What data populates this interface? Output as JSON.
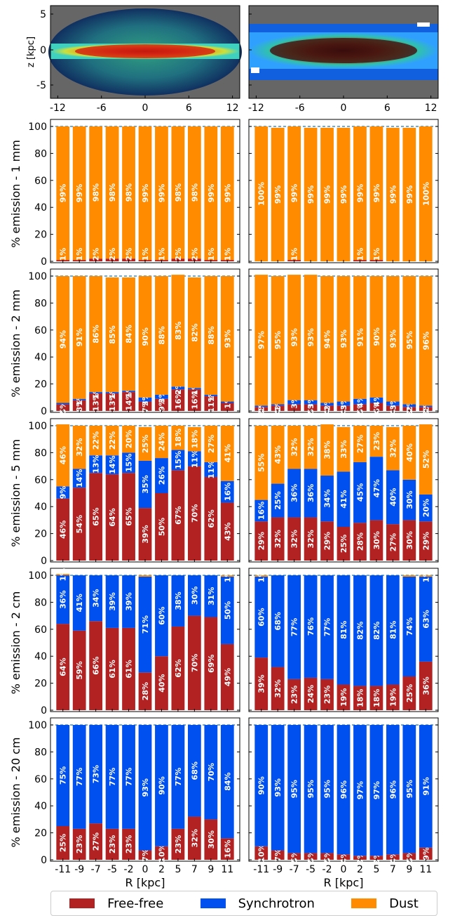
{
  "colors": {
    "free_free": "#b22222",
    "synchrotron": "#0050ef",
    "dust": "#ff8c00"
  },
  "maps": {
    "ylabel": "z [kpc]",
    "yticks": [
      "5",
      "0",
      "-5"
    ],
    "xticks": [
      "-12",
      "-6",
      "0",
      "6",
      "12"
    ]
  },
  "chart_data": [
    {
      "type": "bar",
      "stacked": true,
      "panel": "1 mm - left",
      "ylabel": "% emission - 1 mm",
      "ylim": [
        0,
        100
      ],
      "categories": [
        "-11",
        "-9",
        "-7",
        "-5",
        "-2",
        "0",
        "2",
        "5",
        "7",
        "9",
        "11"
      ],
      "series": [
        {
          "name": "Free-free",
          "values": [
            1,
            1,
            2,
            2,
            2,
            1,
            1,
            2,
            2,
            1,
            1
          ],
          "labels": [
            "",
            "",
            "",
            "",
            "",
            "",
            "",
            "",
            "",
            "",
            ""
          ]
        },
        {
          "name": "Synchrotron",
          "values": [
            0,
            0,
            0,
            0,
            0,
            0,
            0,
            0,
            0,
            0,
            0
          ],
          "labels": [
            "",
            "",
            "",
            "",
            "",
            "",
            "",
            "",
            "",
            "",
            ""
          ]
        },
        {
          "name": "Dust",
          "values": [
            99,
            99,
            98,
            98,
            98,
            99,
            99,
            98,
            98,
            99,
            99
          ],
          "labels": [
            "99%",
            "99%",
            "98%",
            "98%",
            "98%",
            "99%",
            "99%",
            "98%",
            "98%",
            "99%",
            "99%"
          ]
        }
      ],
      "extra_labels": [
        "1%",
        "1%",
        "2%",
        "2%",
        "2%",
        "1%",
        "1%",
        "2%",
        "2%",
        "1%",
        "1%"
      ]
    },
    {
      "type": "bar",
      "stacked": true,
      "panel": "1 mm - right",
      "ylim": [
        0,
        100
      ],
      "categories": [
        "-11",
        "-9",
        "-7",
        "-5",
        "-2",
        "0",
        "2",
        "5",
        "7",
        "9",
        "11"
      ],
      "series": [
        {
          "name": "Free-free",
          "values": [
            0,
            0,
            1,
            0,
            0,
            0,
            1,
            1,
            0,
            0,
            0
          ],
          "labels": [
            "",
            "",
            "",
            "",
            "",
            "",
            "",
            "",
            "",
            "",
            ""
          ]
        },
        {
          "name": "Synchrotron",
          "values": [
            0,
            0,
            0,
            0,
            0,
            0,
            0,
            0,
            0,
            0,
            0
          ],
          "labels": [
            "",
            "",
            "",
            "",
            "",
            "",
            "",
            "",
            "",
            "",
            ""
          ]
        },
        {
          "name": "Dust",
          "values": [
            100,
            99,
            99,
            99,
            99,
            99,
            99,
            99,
            99,
            99,
            100
          ],
          "labels": [
            "100%",
            "99%",
            "99%",
            "99%",
            "99%",
            "99%",
            "99%",
            "99%",
            "99%",
            "99%",
            "100%"
          ]
        }
      ],
      "extra_labels": [
        "",
        "",
        "1%",
        "",
        "",
        "",
        "1%",
        "1%",
        "",
        "",
        ""
      ]
    },
    {
      "type": "bar",
      "stacked": true,
      "panel": "2 mm - left",
      "ylabel": "% emission - 2 mm",
      "ylim": [
        0,
        100
      ],
      "categories": [
        "-11",
        "-9",
        "-7",
        "-5",
        "-2",
        "0",
        "2",
        "5",
        "7",
        "9",
        "11"
      ],
      "series": [
        {
          "name": "Free-free",
          "values": [
            5,
            8,
            13,
            13,
            14,
            7,
            9,
            16,
            16,
            11,
            6
          ],
          "labels": [
            "5%",
            "8%",
            "13%",
            "13%",
            "14%",
            "7%",
            "9%",
            "16%",
            "16%",
            "11%",
            ""
          ]
        },
        {
          "name": "Synchrotron",
          "values": [
            1,
            1,
            1,
            1,
            1,
            3,
            3,
            2,
            1,
            1,
            1
          ],
          "labels": [
            "",
            "1%",
            "1%",
            "1%",
            "1%",
            "3%",
            "3%",
            "2%",
            "1%",
            "1%",
            "1%"
          ]
        },
        {
          "name": "Dust",
          "values": [
            94,
            91,
            86,
            85,
            84,
            90,
            88,
            83,
            82,
            88,
            93
          ],
          "labels": [
            "94%",
            "91%",
            "86%",
            "85%",
            "84%",
            "90%",
            "88%",
            "83%",
            "82%",
            "88%",
            "93%"
          ]
        }
      ]
    },
    {
      "type": "bar",
      "stacked": true,
      "panel": "2 mm - right",
      "ylim": [
        0,
        100
      ],
      "categories": [
        "-11",
        "-9",
        "-7",
        "-5",
        "-2",
        "0",
        "2",
        "5",
        "7",
        "9",
        "11"
      ],
      "series": [
        {
          "name": "Free-free",
          "values": [
            3,
            4,
            5,
            5,
            4,
            4,
            5,
            6,
            4,
            3,
            3
          ],
          "labels": [
            "3%",
            "4%",
            "",
            "5%",
            "4%",
            "4%",
            "5%",
            "6%",
            "4%",
            "3%",
            "3%"
          ]
        },
        {
          "name": "Synchrotron",
          "values": [
            1,
            1,
            3,
            3,
            2,
            3,
            4,
            4,
            3,
            2,
            1
          ],
          "labels": [
            "1%",
            "1%",
            "3%",
            "3%",
            "2%",
            "3%",
            "4%",
            "4%",
            "3%",
            "2%",
            "1%"
          ]
        },
        {
          "name": "Dust",
          "values": [
            97,
            95,
            93,
            93,
            94,
            93,
            91,
            90,
            93,
            95,
            96
          ],
          "labels": [
            "97%",
            "95%",
            "93%",
            "93%",
            "94%",
            "93%",
            "91%",
            "90%",
            "93%",
            "95%",
            "96%"
          ]
        }
      ]
    },
    {
      "type": "bar",
      "stacked": true,
      "panel": "5 mm - left",
      "ylabel": "% emission - 5 mm",
      "ylim": [
        0,
        100
      ],
      "categories": [
        "-11",
        "-9",
        "-7",
        "-5",
        "-2",
        "0",
        "2",
        "5",
        "7",
        "9",
        "11"
      ],
      "series": [
        {
          "name": "Free-free",
          "values": [
            46,
            54,
            65,
            64,
            65,
            39,
            50,
            67,
            70,
            62,
            43
          ],
          "labels": [
            "46%",
            "54%",
            "65%",
            "64%",
            "65%",
            "39%",
            "50%",
            "67%",
            "70%",
            "62%",
            "43%"
          ]
        },
        {
          "name": "Synchrotron",
          "values": [
            9,
            14,
            13,
            14,
            15,
            35,
            26,
            15,
            11,
            11,
            16
          ],
          "labels": [
            "9%",
            "14%",
            "13%",
            "14%",
            "15%",
            "35%",
            "26%",
            "15%",
            "11%",
            "11%",
            "16%"
          ]
        },
        {
          "name": "Dust",
          "values": [
            46,
            32,
            22,
            22,
            20,
            25,
            24,
            18,
            18,
            27,
            41
          ],
          "labels": [
            "46%",
            "32%",
            "22%",
            "22%",
            "20%",
            "25%",
            "24%",
            "18%",
            "18%",
            "27%",
            "41%"
          ]
        }
      ]
    },
    {
      "type": "bar",
      "stacked": true,
      "panel": "5 mm - right",
      "ylim": [
        0,
        100
      ],
      "categories": [
        "-11",
        "-9",
        "-7",
        "-5",
        "-2",
        "0",
        "2",
        "5",
        "7",
        "9",
        "11"
      ],
      "series": [
        {
          "name": "Free-free",
          "values": [
            29,
            32,
            32,
            32,
            29,
            25,
            28,
            30,
            27,
            30,
            29
          ],
          "labels": [
            "29%",
            "32%",
            "32%",
            "32%",
            "29%",
            "25%",
            "28%",
            "30%",
            "27%",
            "30%",
            "29%"
          ]
        },
        {
          "name": "Synchrotron",
          "values": [
            16,
            25,
            36,
            36,
            34,
            41,
            45,
            47,
            40,
            30,
            20
          ],
          "labels": [
            "16%",
            "25%",
            "36%",
            "36%",
            "34%",
            "41%",
            "45%",
            "47%",
            "40%",
            "30%",
            "20%"
          ]
        },
        {
          "name": "Dust",
          "values": [
            55,
            43,
            32,
            32,
            38,
            33,
            27,
            23,
            32,
            40,
            52
          ],
          "labels": [
            "55%",
            "43%",
            "32%",
            "32%",
            "38%",
            "33%",
            "27%",
            "23%",
            "32%",
            "40%",
            "52%"
          ]
        }
      ]
    },
    {
      "type": "bar",
      "stacked": true,
      "panel": "2 cm - left",
      "ylabel": "% emission - 2 cm",
      "ylim": [
        0,
        100
      ],
      "categories": [
        "-11",
        "-9",
        "-7",
        "-5",
        "-2",
        "0",
        "2",
        "5",
        "7",
        "9",
        "11"
      ],
      "series": [
        {
          "name": "Free-free",
          "values": [
            64,
            59,
            66,
            61,
            61,
            28,
            40,
            62,
            70,
            69,
            49
          ],
          "labels": [
            "64%",
            "59%",
            "66%",
            "61%",
            "61%",
            "28%",
            "40%",
            "62%",
            "70%",
            "69%",
            "49%"
          ]
        },
        {
          "name": "Synchrotron",
          "values": [
            36,
            41,
            34,
            39,
            39,
            71,
            60,
            38,
            30,
            31,
            50
          ],
          "labels": [
            "36%",
            "41%",
            "34%",
            "39%",
            "39%",
            "71%",
            "60%",
            "38%",
            "30%",
            "31%",
            "50%"
          ]
        },
        {
          "name": "Dust",
          "values": [
            1,
            0,
            0,
            0,
            0,
            1,
            0,
            0,
            0,
            0,
            1
          ],
          "labels": [
            "1%",
            "",
            "",
            "",
            "",
            "",
            "",
            "",
            "",
            "",
            "1%"
          ]
        }
      ]
    },
    {
      "type": "bar",
      "stacked": true,
      "panel": "2 cm - right",
      "ylim": [
        0,
        100
      ],
      "categories": [
        "-11",
        "-9",
        "-7",
        "-5",
        "-2",
        "0",
        "2",
        "5",
        "7",
        "9",
        "11"
      ],
      "series": [
        {
          "name": "Free-free",
          "values": [
            39,
            32,
            23,
            24,
            23,
            19,
            18,
            18,
            19,
            25,
            36
          ],
          "labels": [
            "39%",
            "32%",
            "23%",
            "24%",
            "23%",
            "19%",
            "18%",
            "18%",
            "19%",
            "25%",
            "36%"
          ]
        },
        {
          "name": "Synchrotron",
          "values": [
            60,
            68,
            77,
            76,
            77,
            81,
            82,
            82,
            81,
            74,
            63
          ],
          "labels": [
            "60%",
            "68%",
            "77%",
            "76%",
            "77%",
            "81%",
            "82%",
            "82%",
            "81%",
            "74%",
            "63%"
          ]
        },
        {
          "name": "Dust",
          "values": [
            1,
            0,
            0,
            0,
            0,
            0,
            0,
            0,
            0,
            1,
            1
          ],
          "labels": [
            "1%",
            "",
            "",
            "",
            "",
            "",
            "",
            "",
            "",
            "",
            "1%"
          ]
        }
      ]
    },
    {
      "type": "bar",
      "stacked": true,
      "panel": "20 cm - left",
      "ylabel": "% emission - 20 cm",
      "ylim": [
        0,
        100
      ],
      "xlabel": "R [kpc]",
      "categories": [
        "-11",
        "-9",
        "-7",
        "-5",
        "-2",
        "0",
        "2",
        "5",
        "7",
        "9",
        "11"
      ],
      "series": [
        {
          "name": "Free-free",
          "values": [
            25,
            23,
            27,
            23,
            23,
            7,
            10,
            23,
            32,
            30,
            16
          ],
          "labels": [
            "25%",
            "23%",
            "27%",
            "23%",
            "23%",
            "7%",
            "10%",
            "23%",
            "32%",
            "30%",
            "16%"
          ]
        },
        {
          "name": "Synchrotron",
          "values": [
            75,
            77,
            73,
            77,
            77,
            93,
            90,
            77,
            68,
            70,
            84
          ],
          "labels": [
            "75%",
            "77%",
            "73%",
            "77%",
            "77%",
            "93%",
            "90%",
            "77%",
            "68%",
            "70%",
            "84%"
          ]
        },
        {
          "name": "Dust",
          "values": [
            0,
            0,
            0,
            0,
            0,
            0,
            0,
            0,
            0,
            0,
            0
          ],
          "labels": [
            "",
            "",
            "",
            "",
            "",
            "",
            "",
            "",
            "",
            "",
            ""
          ]
        }
      ]
    },
    {
      "type": "bar",
      "stacked": true,
      "panel": "20 cm - right",
      "ylim": [
        0,
        100
      ],
      "xlabel": "R [kpc]",
      "categories": [
        "-11",
        "-9",
        "-7",
        "-5",
        "-2",
        "0",
        "2",
        "5",
        "7",
        "9",
        "11"
      ],
      "series": [
        {
          "name": "Free-free",
          "values": [
            10,
            7,
            5,
            5,
            5,
            4,
            3,
            3,
            4,
            5,
            9
          ],
          "labels": [
            "10%",
            "7%",
            "5%",
            "5%",
            "5%",
            "4%",
            "3%",
            "3%",
            "4%",
            "5%",
            "9%"
          ]
        },
        {
          "name": "Synchrotron",
          "values": [
            90,
            93,
            95,
            95,
            95,
            96,
            97,
            97,
            96,
            95,
            91
          ],
          "labels": [
            "90%",
            "93%",
            "95%",
            "95%",
            "95%",
            "96%",
            "97%",
            "97%",
            "96%",
            "95%",
            "91%"
          ]
        },
        {
          "name": "Dust",
          "values": [
            0,
            0,
            0,
            0,
            0,
            0,
            0,
            0,
            0,
            0,
            0
          ],
          "labels": [
            "",
            "",
            "",
            "",
            "",
            "",
            "",
            "",
            "",
            "",
            ""
          ]
        }
      ]
    }
  ],
  "legend": {
    "free_free": "Free-free",
    "synchrotron": "Synchrotron",
    "dust": "Dust"
  }
}
